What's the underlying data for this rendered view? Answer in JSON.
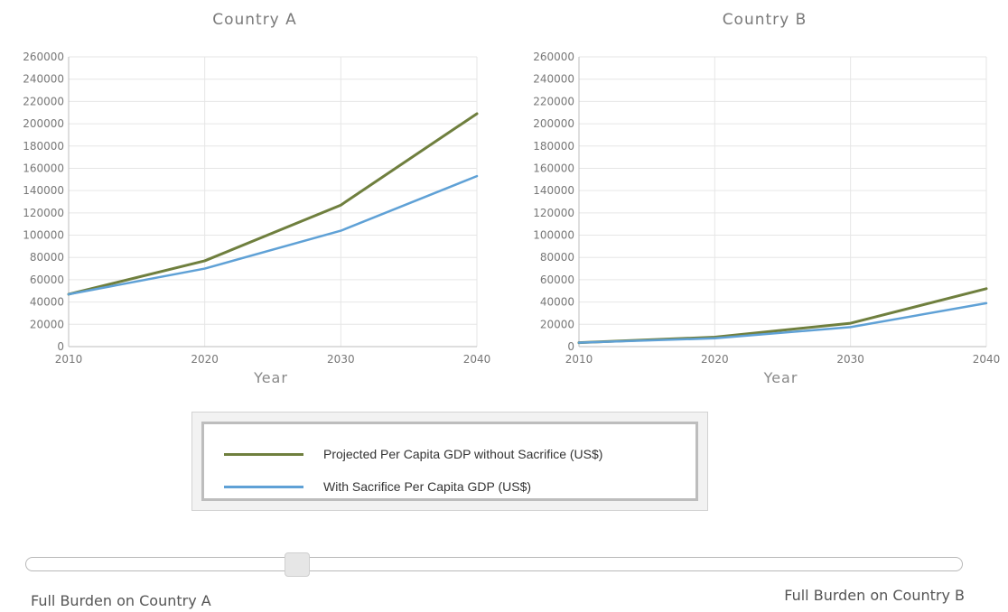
{
  "chart_data": [
    {
      "type": "line",
      "title": "Country A",
      "xlabel": "Year",
      "ylabel": "",
      "x": [
        2010,
        2020,
        2030,
        2040
      ],
      "xlim": [
        2010,
        2040
      ],
      "ylim": [
        0,
        260000
      ],
      "xticks": [
        "2010",
        "2020",
        "2030",
        "2040"
      ],
      "yticks": [
        "0",
        "20000",
        "40000",
        "60000",
        "80000",
        "100000",
        "120000",
        "140000",
        "160000",
        "180000",
        "200000",
        "220000",
        "240000",
        "260000"
      ],
      "grid": true,
      "series": [
        {
          "name": "Projected Per Capita GDP without Sacrifice (US$)",
          "color": "#6f7f3e",
          "values": [
            47000,
            77000,
            127000,
            209000
          ]
        },
        {
          "name": "With Sacrifice Per Capita GDP (US$)",
          "color": "#5fa1d6",
          "values": [
            47000,
            70000,
            104000,
            153000
          ]
        }
      ]
    },
    {
      "type": "line",
      "title": "Country B",
      "xlabel": "Year",
      "ylabel": "",
      "x": [
        2010,
        2020,
        2030,
        2040
      ],
      "xlim": [
        2010,
        2040
      ],
      "ylim": [
        0,
        260000
      ],
      "xticks": [
        "2010",
        "2020",
        "2030",
        "2040"
      ],
      "yticks": [
        "0",
        "20000",
        "40000",
        "60000",
        "80000",
        "100000",
        "120000",
        "140000",
        "160000",
        "180000",
        "200000",
        "220000",
        "240000",
        "260000"
      ],
      "grid": true,
      "series": [
        {
          "name": "Projected Per Capita GDP without Sacrifice (US$)",
          "color": "#6f7f3e",
          "values": [
            3500,
            8500,
            21000,
            52000
          ]
        },
        {
          "name": "With Sacrifice Per Capita GDP (US$)",
          "color": "#5fa1d6",
          "values": [
            3500,
            7500,
            17500,
            39000
          ]
        }
      ]
    }
  ],
  "legend": {
    "items": [
      {
        "label": "Projected Per Capita GDP without Sacrifice (US$)",
        "color": "#6f7f3e"
      },
      {
        "label": "With Sacrifice Per Capita GDP (US$)",
        "color": "#5fa1d6"
      }
    ]
  },
  "slider": {
    "value": 0.29,
    "left_label": "Full Burden on Country A",
    "right_label": "Full Burden on Country B"
  }
}
